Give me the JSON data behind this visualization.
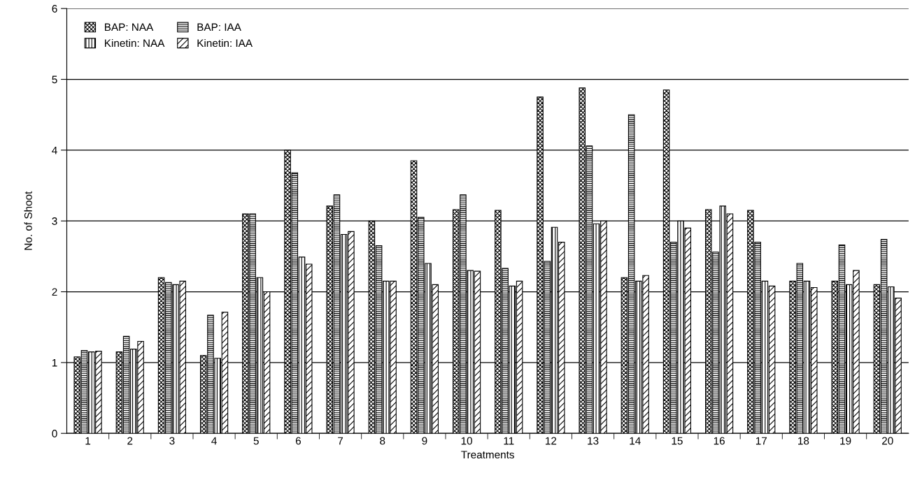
{
  "chart_data": {
    "type": "bar",
    "xlabel": "Treatments",
    "ylabel": "No. of Shoot",
    "categories": [
      "1",
      "2",
      "3",
      "4",
      "5",
      "6",
      "7",
      "8",
      "9",
      "10",
      "11",
      "12",
      "13",
      "14",
      "15",
      "16",
      "17",
      "18",
      "19",
      "20"
    ],
    "series": [
      {
        "name": "BAP: NAA",
        "color": "#000000",
        "values": [
          1.08,
          1.15,
          2.2,
          1.1,
          3.1,
          4.0,
          3.21,
          3.0,
          3.85,
          3.16,
          3.15,
          4.75,
          4.88,
          2.2,
          4.85,
          3.16,
          3.15,
          2.15,
          2.15,
          2.1
        ]
      },
      {
        "name": "BAP: IAA",
        "color": "#000000",
        "values": [
          1.17,
          1.37,
          2.13,
          1.67,
          3.1,
          3.68,
          3.37,
          2.65,
          3.05,
          3.37,
          2.33,
          2.43,
          4.06,
          4.5,
          2.7,
          2.56,
          2.7,
          2.4,
          2.66,
          2.74
        ]
      },
      {
        "name": "Kinetin: NAA",
        "color": "#000000",
        "values": [
          1.15,
          1.19,
          2.1,
          1.06,
          2.2,
          2.49,
          2.81,
          2.15,
          2.4,
          2.3,
          2.08,
          2.91,
          2.96,
          2.15,
          3.0,
          3.21,
          2.15,
          2.15,
          2.1,
          2.07
        ]
      },
      {
        "name": "Kinetin: IAA",
        "color": "#000000",
        "values": [
          1.16,
          1.3,
          2.15,
          1.71,
          2.0,
          2.39,
          2.85,
          2.15,
          2.1,
          2.29,
          2.15,
          2.7,
          3.0,
          2.23,
          2.9,
          3.1,
          2.08,
          2.06,
          2.3,
          1.91
        ]
      }
    ],
    "ylim": [
      0,
      6
    ],
    "yticks": [
      0,
      1,
      2,
      3,
      4,
      5,
      6
    ],
    "grid": "y",
    "legend": "top left"
  }
}
